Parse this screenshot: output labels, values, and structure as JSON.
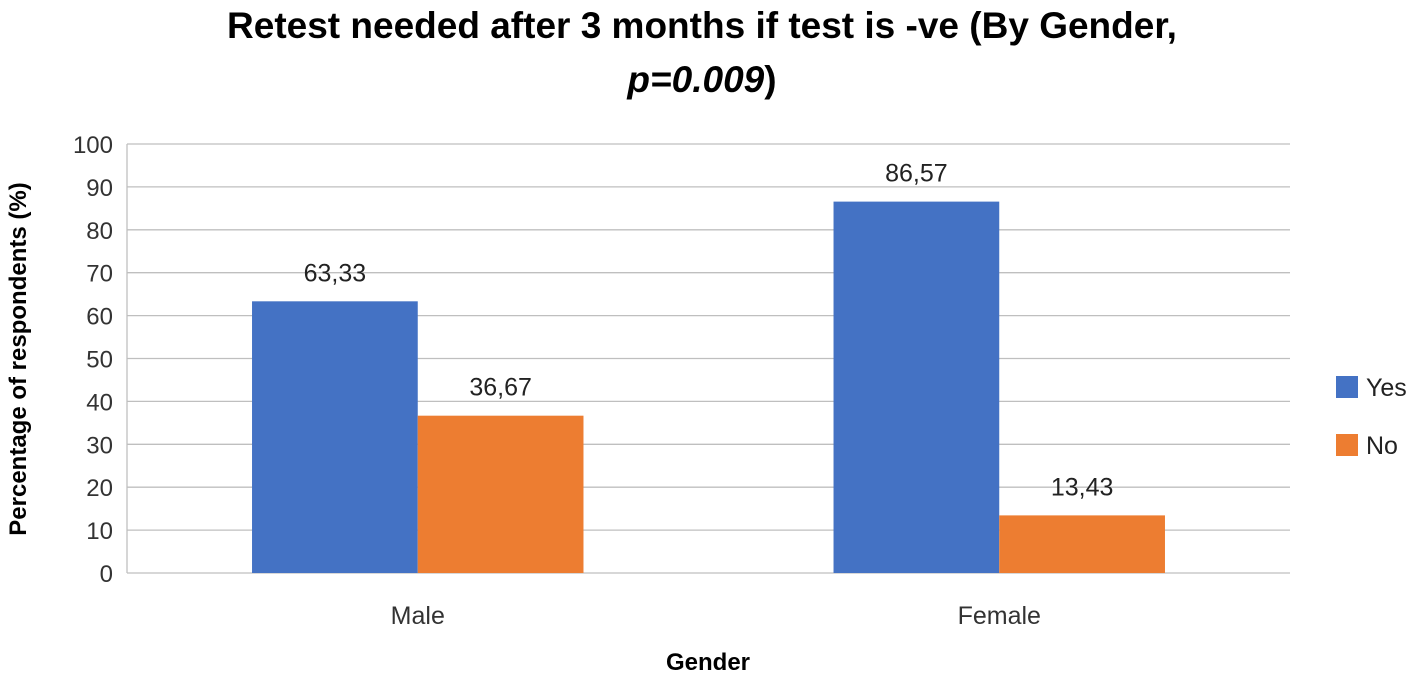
{
  "chart_data": {
    "type": "bar",
    "title_main": "Retest needed after 3 months if test is -ve (By Gender,",
    "title_stat": "p=0.009",
    "title_close": ")",
    "xlabel": "Gender",
    "ylabel": "Percentage of respondents (%)",
    "categories": [
      "Male",
      "Female"
    ],
    "series": [
      {
        "name": "Yes",
        "color": "#4472C4",
        "values": [
          63.33,
          86.57
        ],
        "labels": [
          "63,33",
          "86,57"
        ]
      },
      {
        "name": "No",
        "color": "#ED7D31",
        "values": [
          36.67,
          13.43
        ],
        "labels": [
          "36,67",
          "13,43"
        ]
      }
    ],
    "ylim": [
      0,
      100
    ],
    "yticks": [
      0,
      10,
      20,
      30,
      40,
      50,
      60,
      70,
      80,
      90,
      100
    ],
    "grid": true,
    "legend_position": "right"
  }
}
